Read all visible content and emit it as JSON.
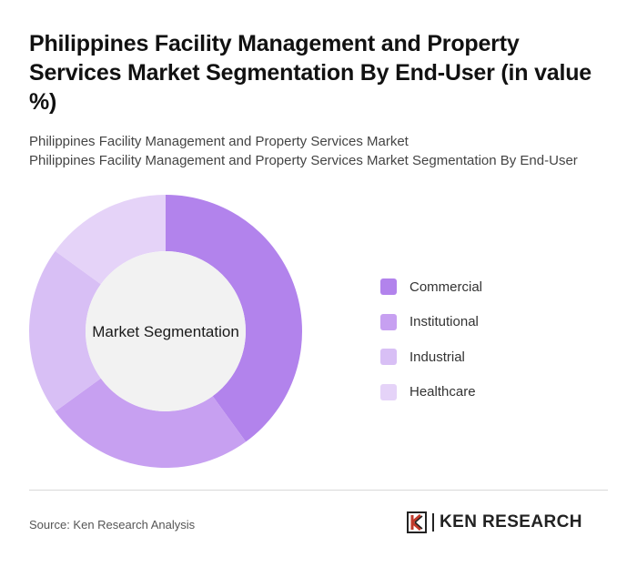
{
  "title": "Philippines Facility Management and Property Services Market Segmentation By End-User (in value %)",
  "subtitle_lines": [
    "Philippines Facility Management and Property Services Market",
    "Philippines Facility Management and Property Services Market Segmentation By End-User"
  ],
  "chart_data": {
    "type": "pie",
    "variant": "donut",
    "center_label": "Market Segmentation",
    "categories": [
      "Commercial",
      "Institutional",
      "Industrial",
      "Healthcare"
    ],
    "values": [
      40,
      25,
      20,
      15
    ],
    "colors": [
      "#b283ec",
      "#c7a0f1",
      "#d8bff5",
      "#e5d3f8"
    ],
    "legend_position": "right"
  },
  "footer": {
    "source": "Source: Ken Research Analysis",
    "brand": "KEN RESEARCH"
  }
}
